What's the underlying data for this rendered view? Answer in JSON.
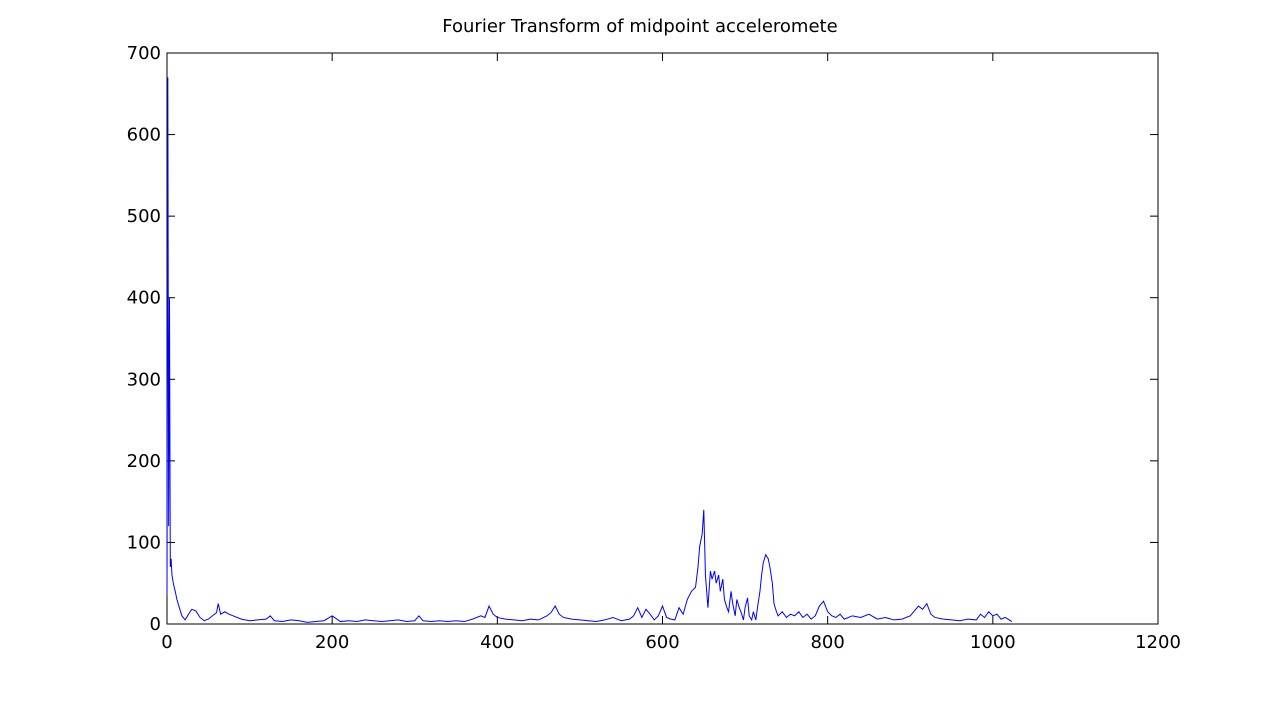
{
  "chart_data": {
    "type": "line",
    "title": "Fourier Transform of midpoint acceleromete",
    "xlabel": "",
    "ylabel": "",
    "xlim": [
      0,
      1200
    ],
    "ylim": [
      0,
      700
    ],
    "xticks": [
      0,
      200,
      400,
      600,
      800,
      1000,
      1200
    ],
    "yticks": [
      0,
      100,
      200,
      300,
      400,
      500,
      600,
      700
    ],
    "grid": false,
    "line_color": "#0000ff",
    "series": [
      {
        "x": [
          0,
          1,
          2,
          3,
          4,
          5,
          6,
          8,
          10,
          12,
          15,
          18,
          22,
          26,
          30,
          35,
          40,
          45,
          50,
          55,
          60,
          62,
          65,
          70,
          75,
          80,
          90,
          100,
          110,
          120,
          125,
          130,
          140,
          150,
          160,
          170,
          180,
          190,
          200,
          210,
          220,
          230,
          240,
          250,
          260,
          270,
          280,
          290,
          300,
          305,
          310,
          320,
          330,
          340,
          350,
          360,
          370,
          380,
          385,
          390,
          395,
          400,
          410,
          420,
          430,
          440,
          450,
          460,
          465,
          470,
          475,
          480,
          490,
          500,
          510,
          520,
          530,
          540,
          550,
          560,
          565,
          570,
          575,
          580,
          585,
          590,
          595,
          600,
          605,
          610,
          615,
          620,
          625,
          630,
          635,
          640,
          643,
          645,
          648,
          650,
          652,
          655,
          658,
          660,
          663,
          665,
          668,
          670,
          673,
          675,
          678,
          680,
          683,
          685,
          688,
          690,
          693,
          695,
          698,
          700,
          703,
          705,
          708,
          710,
          713,
          715,
          718,
          720,
          722,
          725,
          728,
          730,
          733,
          735,
          738,
          740,
          745,
          750,
          755,
          760,
          765,
          770,
          775,
          780,
          785,
          790,
          795,
          800,
          805,
          810,
          815,
          820,
          830,
          840,
          850,
          860,
          870,
          880,
          890,
          900,
          910,
          915,
          920,
          925,
          930,
          940,
          950,
          960,
          970,
          980,
          985,
          990,
          995,
          1000,
          1005,
          1010,
          1015,
          1020,
          1023
        ],
        "y": [
          35,
          670,
          120,
          400,
          70,
          80,
          60,
          48,
          40,
          30,
          20,
          10,
          5,
          12,
          18,
          16,
          8,
          4,
          6,
          10,
          14,
          25,
          12,
          15,
          12,
          10,
          6,
          4,
          5,
          6,
          10,
          4,
          3,
          5,
          4,
          2,
          3,
          4,
          10,
          3,
          4,
          3,
          5,
          4,
          3,
          4,
          5,
          3,
          4,
          10,
          4,
          3,
          4,
          3,
          4,
          3,
          6,
          10,
          8,
          22,
          12,
          8,
          6,
          5,
          4,
          6,
          5,
          10,
          14,
          22,
          12,
          8,
          6,
          5,
          4,
          3,
          5,
          8,
          4,
          6,
          10,
          20,
          8,
          18,
          12,
          5,
          10,
          22,
          8,
          6,
          5,
          20,
          12,
          30,
          40,
          45,
          70,
          95,
          110,
          140,
          60,
          20,
          65,
          55,
          65,
          50,
          60,
          40,
          55,
          30,
          20,
          15,
          40,
          25,
          10,
          30,
          20,
          15,
          5,
          20,
          32,
          10,
          5,
          15,
          5,
          20,
          40,
          60,
          75,
          85,
          80,
          70,
          50,
          25,
          15,
          10,
          15,
          8,
          12,
          10,
          15,
          8,
          12,
          6,
          10,
          22,
          28,
          15,
          10,
          8,
          12,
          6,
          10,
          8,
          12,
          6,
          8,
          5,
          6,
          10,
          22,
          18,
          25,
          12,
          8,
          6,
          5,
          4,
          6,
          5,
          12,
          8,
          15,
          10,
          12,
          6,
          8,
          5,
          3
        ]
      }
    ]
  }
}
